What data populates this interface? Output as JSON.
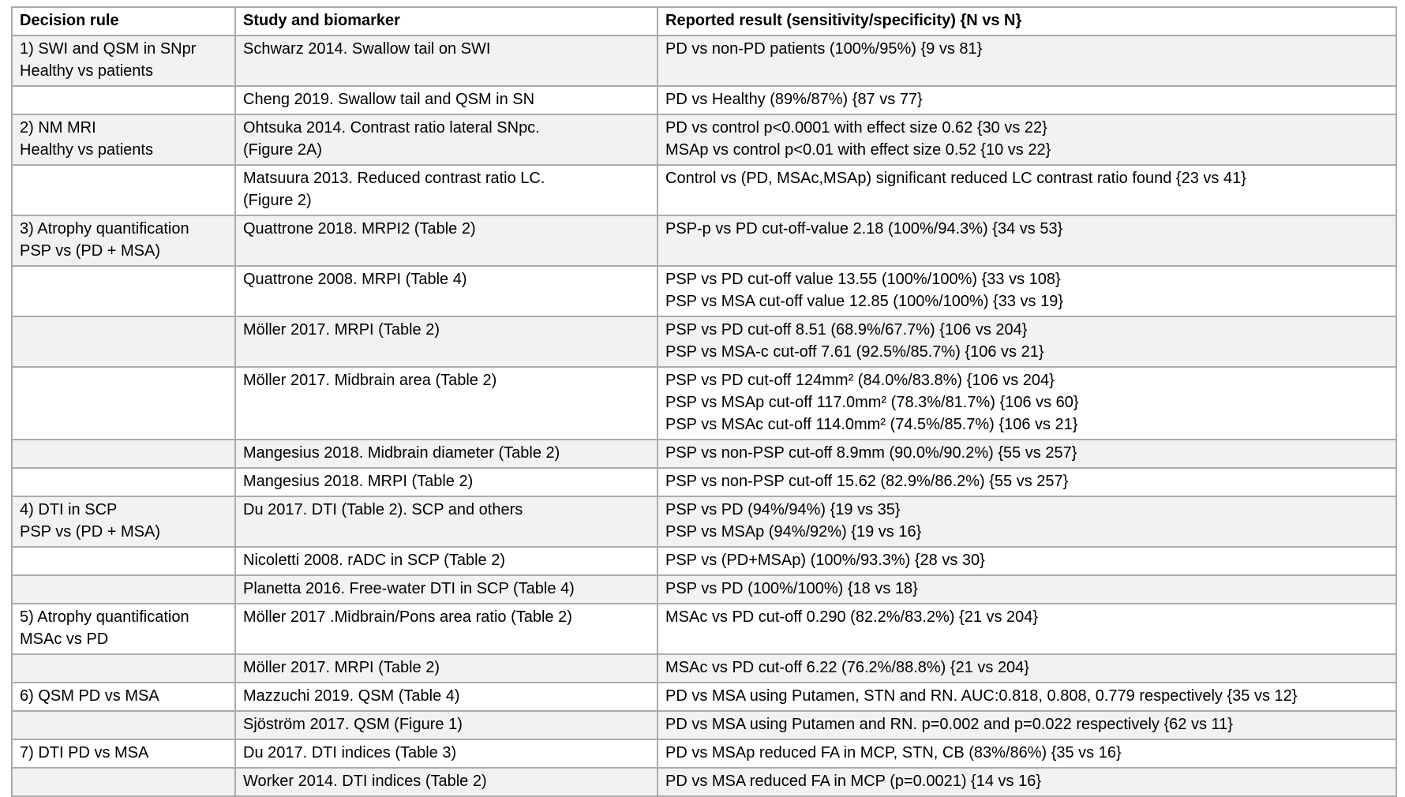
{
  "colors": {
    "row_shade": "#f2f2f2",
    "border": "#ababab",
    "text": "#000000"
  },
  "table": {
    "headers": [
      "Decision rule",
      "Study and biomarker",
      "Reported result (sensitivity/specificity) {N vs N}"
    ],
    "rows": [
      {
        "decision_rule": [
          "1) SWI and QSM in SNpr",
          "Healthy vs patients"
        ],
        "study": [
          "Schwarz 2014. Swallow tail on SWI"
        ],
        "results": [
          "PD vs non-PD patients (100%/95%) {9 vs 81}"
        ]
      },
      {
        "decision_rule": [],
        "study": [
          "Cheng 2019. Swallow tail and QSM in SN"
        ],
        "results": [
          "PD vs Healthy (89%/87%) {87 vs 77}"
        ]
      },
      {
        "decision_rule": [
          "2) NM MRI",
          "Healthy vs patients"
        ],
        "study": [
          "Ohtsuka 2014. Contrast ratio lateral SNpc.",
          "(Figure 2A)"
        ],
        "results": [
          "PD vs control p<0.0001 with effect size 0.62 {30 vs 22}",
          "MSAp vs control p<0.01 with effect size 0.52 {10 vs 22}"
        ]
      },
      {
        "decision_rule": [],
        "study": [
          "Matsuura 2013. Reduced contrast ratio LC.",
          "(Figure 2)"
        ],
        "results": [
          "Control vs (PD, MSAc,MSAp) significant reduced LC contrast ratio found {23 vs 41}"
        ]
      },
      {
        "decision_rule": [
          "3) Atrophy quantification",
          "PSP vs (PD + MSA)"
        ],
        "study": [
          "Quattrone 2018. MRPI2 (Table 2)"
        ],
        "results": [
          "PSP-p vs PD cut-off-value 2.18 (100%/94.3%) {34 vs 53}"
        ]
      },
      {
        "decision_rule": [],
        "study": [
          "Quattrone 2008. MRPI (Table 4)"
        ],
        "results": [
          "PSP vs PD cut-off value 13.55 (100%/100%) {33 vs 108}",
          "PSP vs MSA cut-off value 12.85 (100%/100%) {33 vs 19}"
        ]
      },
      {
        "decision_rule": [],
        "study": [
          "Möller 2017. MRPI (Table 2)"
        ],
        "results": [
          "PSP vs PD cut-off 8.51 (68.9%/67.7%) {106 vs 204}",
          "PSP vs MSA-c cut-off 7.61 (92.5%/85.7%) {106 vs 21}"
        ]
      },
      {
        "decision_rule": [],
        "study": [
          "Möller 2017. Midbrain area (Table 2)"
        ],
        "results": [
          "PSP vs PD cut-off 124mm² (84.0%/83.8%) {106 vs 204}",
          "PSP vs MSAp cut-off 117.0mm² (78.3%/81.7%) {106 vs 60}",
          "PSP vs MSAc cut-off 114.0mm² (74.5%/85.7%) {106 vs 21}"
        ]
      },
      {
        "decision_rule": [],
        "study": [
          "Mangesius 2018. Midbrain diameter (Table 2)"
        ],
        "results": [
          "PSP vs non-PSP cut-off 8.9mm (90.0%/90.2%) {55 vs 257}"
        ]
      },
      {
        "decision_rule": [],
        "study": [
          "Mangesius 2018. MRPI (Table 2)"
        ],
        "results": [
          "PSP vs non-PSP cut-off 15.62 (82.9%/86.2%) {55 vs 257}"
        ]
      },
      {
        "decision_rule": [
          "4) DTI in SCP",
          "PSP vs (PD + MSA)"
        ],
        "study": [
          "Du 2017. DTI (Table 2). SCP and others"
        ],
        "results": [
          "PSP vs PD (94%/94%) {19 vs 35}",
          "PSP vs MSAp (94%/92%) {19 vs 16}"
        ]
      },
      {
        "decision_rule": [],
        "study": [
          "Nicoletti 2008. rADC in SCP (Table 2)"
        ],
        "results": [
          "PSP vs (PD+MSAp) (100%/93.3%) {28 vs 30}"
        ]
      },
      {
        "decision_rule": [],
        "study": [
          "Planetta 2016. Free-water DTI in SCP (Table 4)"
        ],
        "results": [
          "PSP vs PD (100%/100%) {18 vs 18}"
        ]
      },
      {
        "decision_rule": [
          "5) Atrophy quantification",
          "MSAc vs PD"
        ],
        "study": [
          "Möller 2017 .Midbrain/Pons area ratio (Table 2)"
        ],
        "results": [
          "MSAc vs PD cut-off 0.290 (82.2%/83.2%) {21 vs 204}"
        ]
      },
      {
        "decision_rule": [],
        "study": [
          "Möller 2017. MRPI (Table 2)"
        ],
        "results": [
          "MSAc vs PD cut-off 6.22 (76.2%/88.8%) {21 vs 204}"
        ]
      },
      {
        "decision_rule": [
          "6) QSM PD vs MSA"
        ],
        "study": [
          "Mazzuchi 2019. QSM (Table 4)"
        ],
        "results": [
          "PD vs MSA using Putamen, STN and RN. AUC:0.818, 0.808, 0.779 respectively {35 vs 12}"
        ]
      },
      {
        "decision_rule": [],
        "study": [
          "Sjöström 2017. QSM (Figure 1)"
        ],
        "results": [
          "PD vs MSA using Putamen and RN. p=0.002 and p=0.022 respectively {62 vs 11}"
        ]
      },
      {
        "decision_rule": [
          "7) DTI PD vs MSA"
        ],
        "study": [
          "Du 2017. DTI indices (Table 3)"
        ],
        "results": [
          "PD vs MSAp reduced FA in MCP, STN, CB (83%/86%) {35 vs 16}"
        ]
      },
      {
        "decision_rule": [],
        "study": [
          "Worker 2014. DTI indices (Table 2)"
        ],
        "results": [
          "PD vs MSA reduced FA in MCP (p=0.0021) {14 vs 16}"
        ]
      }
    ]
  }
}
